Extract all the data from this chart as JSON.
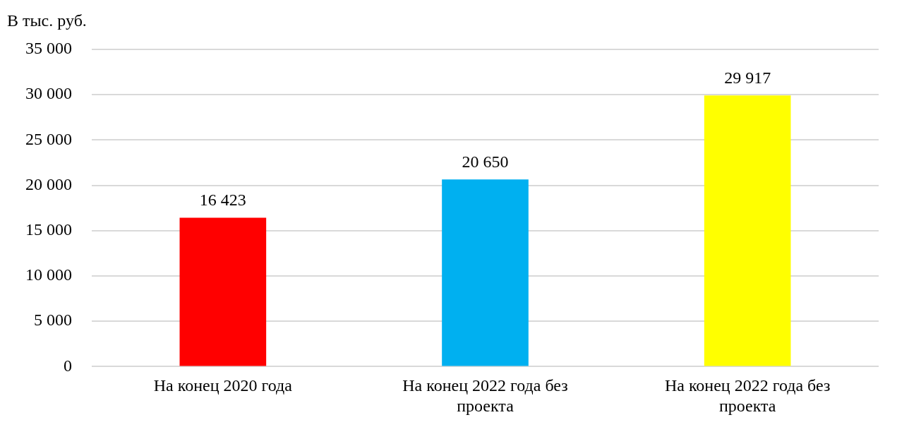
{
  "chart_data": {
    "type": "bar",
    "ylabel": "В тыс. руб.",
    "categories": [
      "На конец 2020 года",
      "На конец 2022 года без проекта",
      "На конец 2022 года без проекта"
    ],
    "values": [
      16423,
      20650,
      29917
    ],
    "colors": [
      "#ff0000",
      "#00b0f0",
      "#ffff00"
    ],
    "value_labels": [
      "16 423",
      "20 650",
      "29 917"
    ],
    "ylim": [
      0,
      35000
    ],
    "yticks": [
      {
        "value": 0,
        "label": "0"
      },
      {
        "value": 5000,
        "label": "5 000"
      },
      {
        "value": 10000,
        "label": "10 000"
      },
      {
        "value": 15000,
        "label": "15 000"
      },
      {
        "value": 20000,
        "label": "20 000"
      },
      {
        "value": 25000,
        "label": "25 000"
      },
      {
        "value": 30000,
        "label": "30 000"
      },
      {
        "value": 35000,
        "label": "35 000"
      }
    ],
    "grid": "y",
    "legend": false
  }
}
